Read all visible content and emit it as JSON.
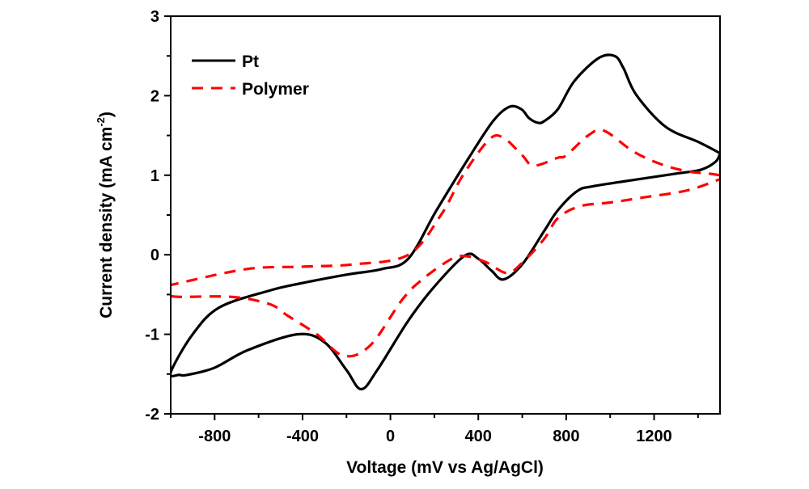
{
  "chart_data": {
    "type": "line",
    "title": "",
    "xlabel": "Voltage (mV vs Ag/AgCl)",
    "ylabel": "Current density (mA cm",
    "ylabel_sup": "-2",
    "ylabel_end": ")",
    "xlim": [
      -1000,
      1500
    ],
    "ylim": [
      -2,
      3
    ],
    "xticks": [
      -800,
      -400,
      0,
      400,
      800,
      1200
    ],
    "xtick_labels": [
      "-800",
      "-400",
      "0",
      "400",
      "800",
      "1200"
    ],
    "xminor": [
      -1000,
      -600,
      -200,
      200,
      600,
      1000,
      1400
    ],
    "yticks": [
      -2,
      -1,
      0,
      1,
      2,
      3
    ],
    "ytick_labels": [
      "-2",
      "-1",
      "0",
      "1",
      "2",
      "3"
    ],
    "grid": false,
    "legend_position": "top-left",
    "series": [
      {
        "name": "Pt",
        "color": "#000000",
        "style": "solid",
        "x": [
          1500,
          1491,
          1400,
          1252,
          1119,
          1060,
          1020,
          946,
          836,
          762,
          700,
          670,
          630,
          596,
          541,
          467,
          357,
          210,
          81,
          -40,
          -200,
          -409,
          -550,
          -777,
          -900,
          -1000,
          -960,
          -924,
          -800,
          -650,
          -423,
          -300,
          -200,
          -133,
          -60,
          81,
          200,
          339,
          400,
          460,
          515,
          600,
          700,
          762,
          850,
          920,
          1130,
          1300,
          1414,
          1480,
          1500
        ],
        "y": [
          1.27,
          1.29,
          1.42,
          1.61,
          2.01,
          2.35,
          2.5,
          2.47,
          2.18,
          1.83,
          1.68,
          1.66,
          1.72,
          1.83,
          1.86,
          1.68,
          1.22,
          0.56,
          -0.05,
          -0.18,
          -0.25,
          -0.36,
          -0.45,
          -0.66,
          -1.0,
          -1.48,
          -1.51,
          -1.51,
          -1.42,
          -1.2,
          -1.0,
          -1.1,
          -1.45,
          -1.69,
          -1.45,
          -0.83,
          -0.4,
          -0.01,
          -0.05,
          -0.2,
          -0.31,
          -0.12,
          0.3,
          0.56,
          0.8,
          0.86,
          0.95,
          1.02,
          1.07,
          1.17,
          1.27
        ]
      },
      {
        "name": "Polymer",
        "color": "#ff0000",
        "style": "dashed",
        "x": [
          1500,
          1451,
          1350,
          1230,
          1105,
          972,
          900,
          800,
          762,
          652,
          600,
          515,
          450,
          330,
          230,
          81,
          -166,
          -400,
          -655,
          -1000
        ],
        "y": [
          1.0,
          1.02,
          1.05,
          1.14,
          1.3,
          1.56,
          1.5,
          1.25,
          1.22,
          1.12,
          1.25,
          1.47,
          1.45,
          1.0,
          0.5,
          0.0,
          -0.12,
          -0.15,
          -0.18,
          -0.38
        ],
        "x2": [
          -1000,
          -948,
          -720,
          -550,
          -471,
          -335,
          -213,
          -92,
          55,
          150,
          280,
          350,
          440,
          530,
          600,
          700,
          762,
          862,
          1009,
          1150,
          1352,
          1500
        ],
        "y2": [
          -0.52,
          -0.53,
          -0.53,
          -0.62,
          -0.76,
          -1.0,
          -1.27,
          -1.14,
          -0.56,
          -0.3,
          -0.05,
          -0.02,
          -0.1,
          -0.23,
          -0.1,
          0.2,
          0.46,
          0.61,
          0.66,
          0.72,
          0.81,
          0.95
        ]
      }
    ]
  }
}
